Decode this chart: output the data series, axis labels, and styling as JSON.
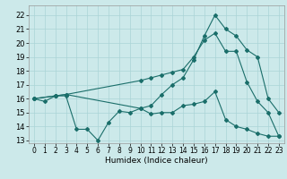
{
  "xlabel": "Humidex (Indice chaleur)",
  "xlim": [
    -0.5,
    23.5
  ],
  "ylim": [
    12.8,
    22.7
  ],
  "yticks": [
    13,
    14,
    15,
    16,
    17,
    18,
    19,
    20,
    21,
    22
  ],
  "xticks": [
    0,
    1,
    2,
    3,
    4,
    5,
    6,
    7,
    8,
    9,
    10,
    11,
    12,
    13,
    14,
    15,
    16,
    17,
    18,
    19,
    20,
    21,
    22,
    23
  ],
  "bg_color": "#cce9ea",
  "grid_color": "#aad4d6",
  "line_color": "#1a6e6a",
  "line1_x": [
    0,
    1,
    2,
    3,
    4,
    5,
    6,
    7,
    8,
    9,
    10,
    11,
    12,
    13,
    14,
    15,
    16,
    17,
    18,
    19,
    20,
    21,
    22,
    23
  ],
  "line1_y": [
    16.0,
    15.8,
    16.2,
    16.2,
    13.8,
    13.8,
    13.0,
    14.3,
    15.1,
    15.0,
    15.3,
    14.9,
    15.0,
    15.0,
    15.5,
    15.6,
    15.8,
    16.5,
    14.5,
    14.0,
    13.8,
    13.5,
    13.3,
    13.3
  ],
  "line2_x": [
    0,
    2,
    3,
    10,
    11,
    12,
    13,
    14,
    15,
    16,
    17,
    18,
    19,
    20,
    21,
    22,
    23
  ],
  "line2_y": [
    16.0,
    16.2,
    16.3,
    15.3,
    15.5,
    16.3,
    17.0,
    17.5,
    18.8,
    20.5,
    22.0,
    21.0,
    20.5,
    19.5,
    19.0,
    16.0,
    15.0
  ],
  "line3_x": [
    0,
    2,
    3,
    10,
    11,
    12,
    13,
    14,
    15,
    16,
    17,
    18,
    19,
    20,
    21,
    22,
    23
  ],
  "line3_y": [
    16.0,
    16.2,
    16.3,
    17.3,
    17.5,
    17.7,
    17.9,
    18.1,
    19.0,
    20.2,
    20.7,
    19.4,
    19.4,
    17.2,
    15.8,
    15.0,
    13.3
  ]
}
